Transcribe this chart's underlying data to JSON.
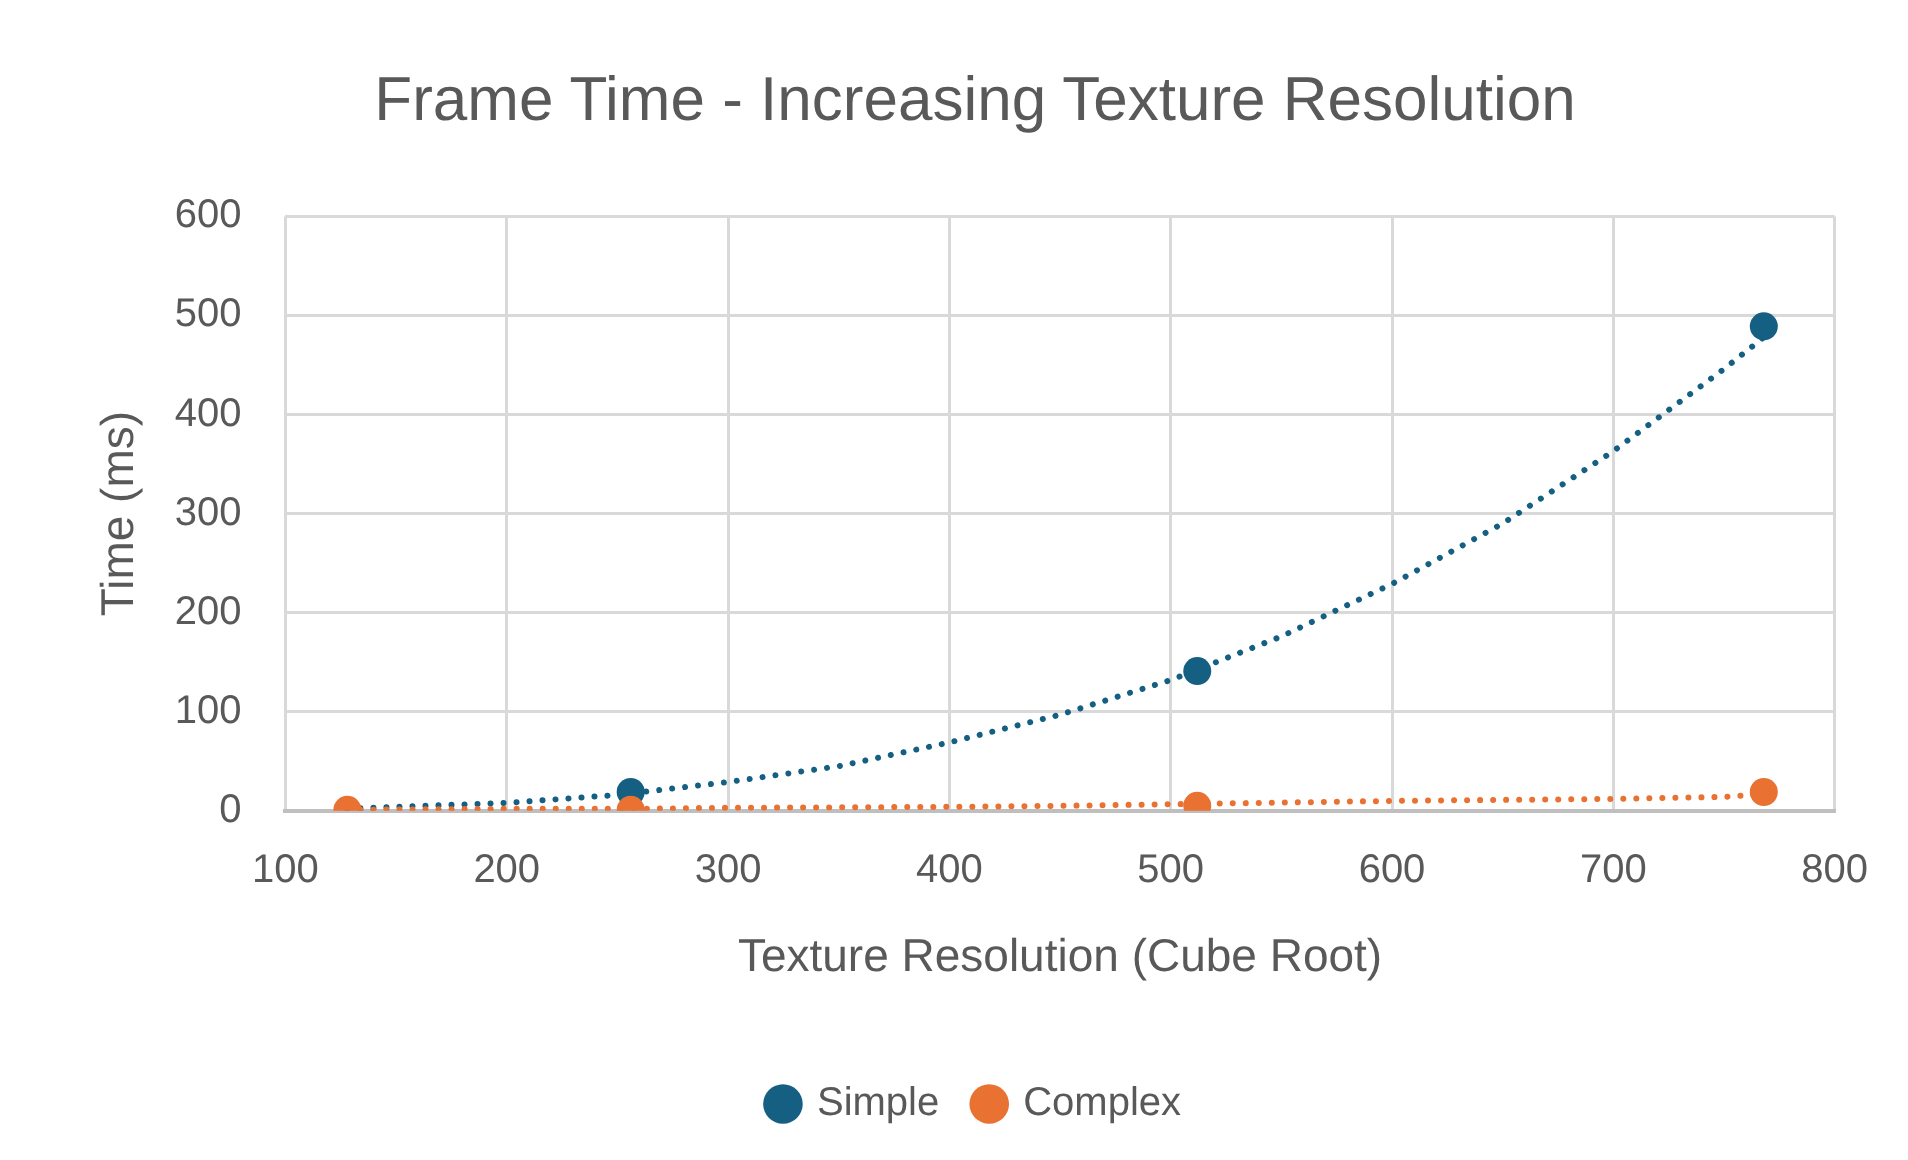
{
  "chart_data": {
    "type": "scatter",
    "title": "Frame Time - Increasing Texture Resolution",
    "xlabel": "Texture Resolution (Cube Root)",
    "ylabel": "Time (ms)",
    "xlim": [
      100,
      800
    ],
    "xticks": [
      100,
      200,
      300,
      400,
      500,
      600,
      700,
      800
    ],
    "ylim": [
      0,
      600
    ],
    "yticks": [
      0,
      100,
      200,
      300,
      400,
      500,
      600
    ],
    "grid": true,
    "legend": "bottom",
    "marker": "circle",
    "series": [
      {
        "name": "Simple",
        "color": "#156082",
        "x": [
          256,
          512,
          768
        ],
        "values": [
          19,
          141,
          489
        ]
      },
      {
        "name": "Complex",
        "color": "#e97132",
        "x": [
          128,
          256,
          512,
          768
        ],
        "values": [
          1,
          1,
          5,
          19
        ]
      },
      {
        "type": "line",
        "color": "#156082",
        "marker": "none",
        "line_style": "dotted",
        "x": [
          128,
          150,
          200,
          250,
          300,
          350,
          400,
          450,
          500,
          550,
          600,
          650,
          700,
          750,
          768
        ],
        "values": [
          2,
          4,
          8,
          16,
          29,
          45,
          69,
          97,
          132,
          176,
          229,
          290,
          363,
          446,
          478
        ]
      },
      {
        "type": "line",
        "color": "#e97132",
        "marker": "none",
        "line_style": "dotted",
        "x": [
          128,
          200,
          256,
          300,
          400,
          450,
          512,
          600,
          700,
          750,
          768
        ],
        "values": [
          1,
          2,
          2,
          3,
          4,
          5,
          7,
          10,
          12,
          14,
          17
        ]
      }
    ]
  }
}
